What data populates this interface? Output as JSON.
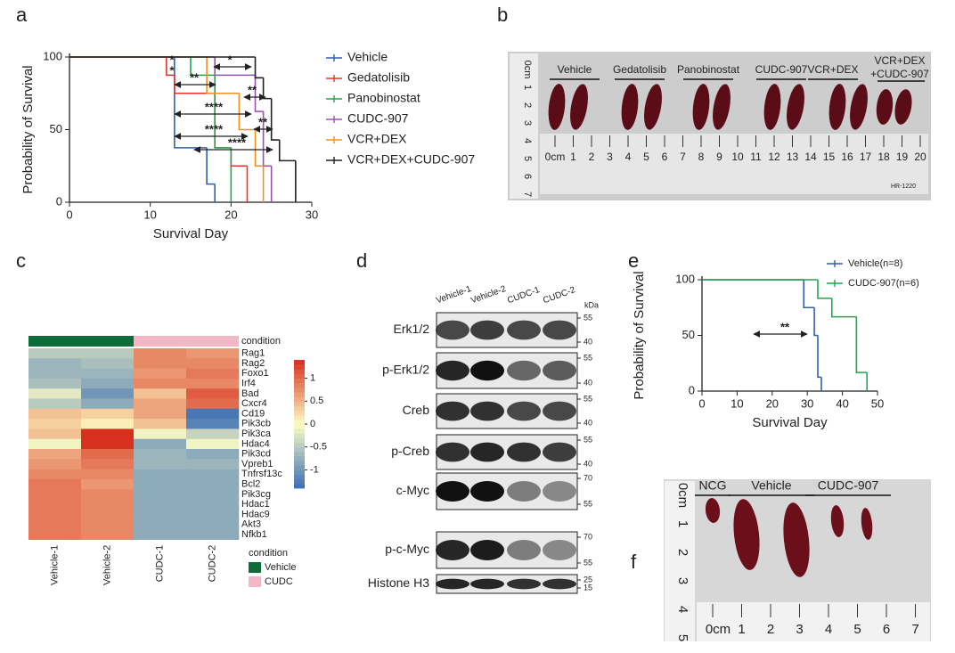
{
  "panel_labels": [
    "a",
    "b",
    "c",
    "d",
    "e",
    "f"
  ],
  "chart_data": [
    {
      "type": "survival",
      "xlabel": "Survival Day",
      "ylabel": "Probability of Survival",
      "xlim": [
        0,
        30
      ],
      "xticks": [
        0,
        10,
        20,
        30
      ],
      "ylim": [
        0,
        100
      ],
      "yticks": [
        0,
        50,
        100
      ],
      "series": [
        {
          "name": "Vehicle",
          "color": "#2f5fb0",
          "x": [
            0,
            13,
            17,
            18
          ],
          "values": [
            100,
            37.5,
            12.5,
            0
          ]
        },
        {
          "name": "Gedatolisib",
          "color": "#e8332a",
          "x": [
            0,
            12,
            13,
            18,
            20,
            22
          ],
          "values": [
            100,
            87.5,
            75,
            37.5,
            25,
            0
          ]
        },
        {
          "name": "Panobinostat",
          "color": "#1fa84a",
          "x": [
            0,
            15,
            18,
            20
          ],
          "values": [
            100,
            87.5,
            37.5,
            0
          ]
        },
        {
          "name": "CUDC-907",
          "color": "#9b4fb4",
          "x": [
            0,
            18,
            23,
            24,
            25
          ],
          "values": [
            100,
            87.5,
            62.5,
            25,
            0
          ]
        },
        {
          "name": "VCR+DEX",
          "color": "#f3901d",
          "x": [
            0,
            17,
            21,
            23,
            24
          ],
          "values": [
            100,
            75,
            50,
            25,
            0
          ]
        },
        {
          "name": "VCR+DEX+CUDC-907",
          "color": "#222222",
          "x": [
            0,
            23,
            24,
            25,
            26,
            28
          ],
          "values": [
            100,
            85.7,
            71.4,
            42.9,
            28.6,
            0
          ]
        }
      ],
      "annotations": [
        "*",
        "*",
        "**",
        "*",
        "**",
        "****",
        "**",
        "****",
        "****"
      ]
    },
    {
      "type": "heatmap",
      "categories": [
        "Vehicle-1",
        "Vehicle-2",
        "CUDC-1",
        "CUDC-2"
      ],
      "rows": [
        "Rag1",
        "Rag2",
        "Foxo1",
        "Irf4",
        "Bad",
        "Cxcr4",
        "Cd19",
        "Pik3cb",
        "Pik3ca",
        "Hdac4",
        "Pik3cd",
        "Vpreb1",
        "Tnfrsf13c",
        "Bcl2",
        "Pik3cg",
        "Hdac1",
        "Hdac9",
        "Akt3",
        "Nfkb1"
      ],
      "values": [
        [
          -0.5,
          -0.5,
          0.8,
          0.7
        ],
        [
          -0.7,
          -0.6,
          0.8,
          0.8
        ],
        [
          -0.7,
          -0.7,
          0.7,
          0.9
        ],
        [
          -0.6,
          -0.8,
          0.8,
          0.8
        ],
        [
          -0.2,
          -1.0,
          0.4,
          1.1
        ],
        [
          -0.5,
          -0.8,
          0.6,
          1.0
        ],
        [
          0.4,
          0.3,
          0.6,
          -1.3
        ],
        [
          0.3,
          0.1,
          0.4,
          -1.2
        ],
        [
          0.4,
          1.4,
          -0.1,
          -0.4
        ],
        [
          -0.1,
          1.4,
          -0.8,
          -0.1
        ],
        [
          0.6,
          1.0,
          -0.7,
          -0.8
        ],
        [
          0.7,
          0.9,
          -0.7,
          -0.7
        ],
        [
          0.8,
          0.8,
          -0.8,
          -0.8
        ],
        [
          0.9,
          0.7,
          -0.8,
          -0.8
        ],
        [
          0.9,
          0.8,
          -0.8,
          -0.8
        ],
        [
          0.9,
          0.8,
          -0.8,
          -0.8
        ],
        [
          0.9,
          0.8,
          -0.8,
          -0.8
        ],
        [
          0.9,
          0.8,
          -0.8,
          -0.8
        ],
        [
          0.9,
          0.8,
          -0.8,
          -0.8
        ]
      ],
      "zlim": [
        -1.4,
        1.4
      ],
      "zticks": [
        1,
        0.5,
        0,
        -0.5,
        -1
      ],
      "colorscale": [
        "#3a6db5",
        "#fefdc3",
        "#d7301f"
      ],
      "condition_title": "condition",
      "column_groups": [
        "Vehicle",
        "Vehicle",
        "CUDC",
        "CUDC"
      ],
      "legend": [
        {
          "name": "Vehicle",
          "color": "#0f6b38"
        },
        {
          "name": "CUDC",
          "color": "#f2b8c6"
        }
      ]
    },
    {
      "type": "survival",
      "xlabel": "Survival Day",
      "ylabel": "Probability of Survival",
      "xlim": [
        0,
        50
      ],
      "xticks": [
        0,
        10,
        20,
        30,
        40,
        50
      ],
      "ylim": [
        0,
        100
      ],
      "yticks": [
        0,
        50,
        100
      ],
      "series": [
        {
          "name": "Vehicle(n=8)",
          "color": "#2f5fb0",
          "x": [
            0,
            29,
            32,
            33,
            34
          ],
          "values": [
            100,
            75,
            50,
            12.5,
            0
          ]
        },
        {
          "name": "CUDC-907(n=6)",
          "color": "#1fa84a",
          "x": [
            0,
            33,
            37,
            44,
            47
          ],
          "values": [
            100,
            83.3,
            66.7,
            16.7,
            0
          ]
        }
      ],
      "annotations": [
        "**"
      ]
    }
  ],
  "photo_b": {
    "groups": [
      "Vehicle",
      "Gedatolisib",
      "Panobinostat",
      "CUDC-907",
      "VCR+DEX"
    ],
    "last_group": [
      "VCR+DEX",
      "+CUDC-907"
    ],
    "ruler_h": [
      "0cm",
      "1",
      "2",
      "3",
      "4",
      "5",
      "6",
      "7",
      "8",
      "9",
      "10",
      "11",
      "12",
      "13",
      "14",
      "15",
      "16",
      "17",
      "18",
      "19",
      "20"
    ],
    "ruler_v": [
      "0cm",
      "1",
      "2",
      "3",
      "4",
      "5",
      "6",
      "7"
    ],
    "brand": "HR-1220"
  },
  "blot_d": {
    "lanes": [
      "Vehicle-1",
      "Vehicle-2",
      "CUDC-1",
      "CUDC-2"
    ],
    "unit": "kDa",
    "rows": [
      {
        "label": "Erk1/2",
        "markers": [
          "55",
          "40"
        ]
      },
      {
        "label": "p-Erk1/2",
        "markers": [
          "55",
          "40"
        ]
      },
      {
        "label": "Creb",
        "markers": [
          "55",
          "40"
        ]
      },
      {
        "label": "p-Creb",
        "markers": [
          "55",
          "40"
        ]
      },
      {
        "label": "c-Myc",
        "markers": [
          "70",
          "55"
        ]
      },
      {
        "label": "p-c-Myc",
        "markers": [
          "70",
          "55"
        ]
      },
      {
        "label": "Histone H3",
        "markers": [
          "25",
          "15"
        ]
      }
    ]
  },
  "photo_f": {
    "groups": [
      "NCG",
      "Vehicle",
      "CUDC-907"
    ],
    "ruler_v": [
      "0cm",
      "1",
      "2",
      "3",
      "4",
      "5"
    ],
    "ruler_h": [
      "0cm",
      "1",
      "2",
      "3",
      "4",
      "5",
      "6",
      "7"
    ]
  }
}
